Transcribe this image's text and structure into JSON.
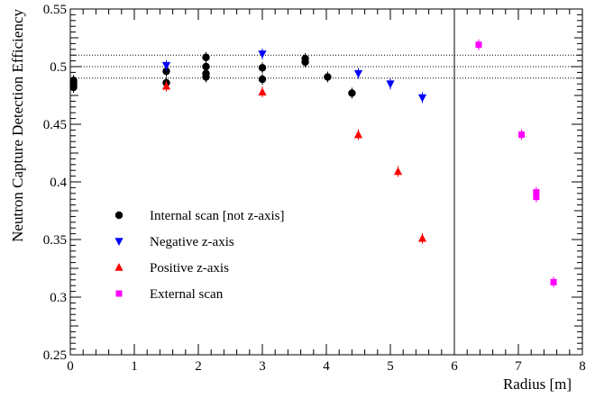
{
  "chart_data": {
    "type": "scatter",
    "xlabel": "Radius [m]",
    "ylabel": "Neutron Capture Detection Efficiency",
    "xlim": [
      0,
      8
    ],
    "ylim": [
      0.25,
      0.55
    ],
    "x_ticks": [
      "0",
      "1",
      "2",
      "3",
      "4",
      "5",
      "6",
      "7",
      "8"
    ],
    "y_ticks": [
      "0.25",
      "0.3",
      "0.35",
      "0.4",
      "0.45",
      "0.5",
      "0.55"
    ],
    "reference_lines_y": [
      0.49,
      0.5,
      0.51
    ],
    "boundary_line_x": 6.0,
    "grid": false,
    "legend_position": "bottom-left",
    "series": [
      {
        "name": "Internal scan [not z-axis]",
        "marker": "circle",
        "color": "#000000",
        "points": [
          {
            "x": 0.05,
            "y": 0.482
          },
          {
            "x": 0.05,
            "y": 0.484
          },
          {
            "x": 0.05,
            "y": 0.486
          },
          {
            "x": 0.05,
            "y": 0.488
          },
          {
            "x": 1.5,
            "y": 0.486
          },
          {
            "x": 1.5,
            "y": 0.496
          },
          {
            "x": 2.12,
            "y": 0.491
          },
          {
            "x": 2.12,
            "y": 0.494
          },
          {
            "x": 2.12,
            "y": 0.5
          },
          {
            "x": 2.12,
            "y": 0.508
          },
          {
            "x": 3.0,
            "y": 0.489
          },
          {
            "x": 3.0,
            "y": 0.499
          },
          {
            "x": 3.67,
            "y": 0.504
          },
          {
            "x": 3.67,
            "y": 0.507
          },
          {
            "x": 4.02,
            "y": 0.491
          },
          {
            "x": 4.4,
            "y": 0.477
          }
        ]
      },
      {
        "name": "Negative z-axis",
        "marker": "triangle-down",
        "color": "#0000ff",
        "points": [
          {
            "x": 1.5,
            "y": 0.501
          },
          {
            "x": 3.0,
            "y": 0.511
          },
          {
            "x": 4.5,
            "y": 0.494
          },
          {
            "x": 5.0,
            "y": 0.485
          },
          {
            "x": 5.5,
            "y": 0.473
          }
        ]
      },
      {
        "name": "Positive z-axis",
        "marker": "triangle-up",
        "color": "#ff0000",
        "points": [
          {
            "x": 1.5,
            "y": 0.483
          },
          {
            "x": 3.0,
            "y": 0.478
          },
          {
            "x": 4.5,
            "y": 0.441
          },
          {
            "x": 5.12,
            "y": 0.409
          },
          {
            "x": 5.5,
            "y": 0.351
          }
        ]
      },
      {
        "name": "External scan",
        "marker": "square",
        "color": "#ff00ff",
        "points": [
          {
            "x": 6.38,
            "y": 0.519
          },
          {
            "x": 7.05,
            "y": 0.441
          },
          {
            "x": 7.28,
            "y": 0.387
          },
          {
            "x": 7.28,
            "y": 0.391
          },
          {
            "x": 7.55,
            "y": 0.313
          }
        ]
      }
    ]
  }
}
